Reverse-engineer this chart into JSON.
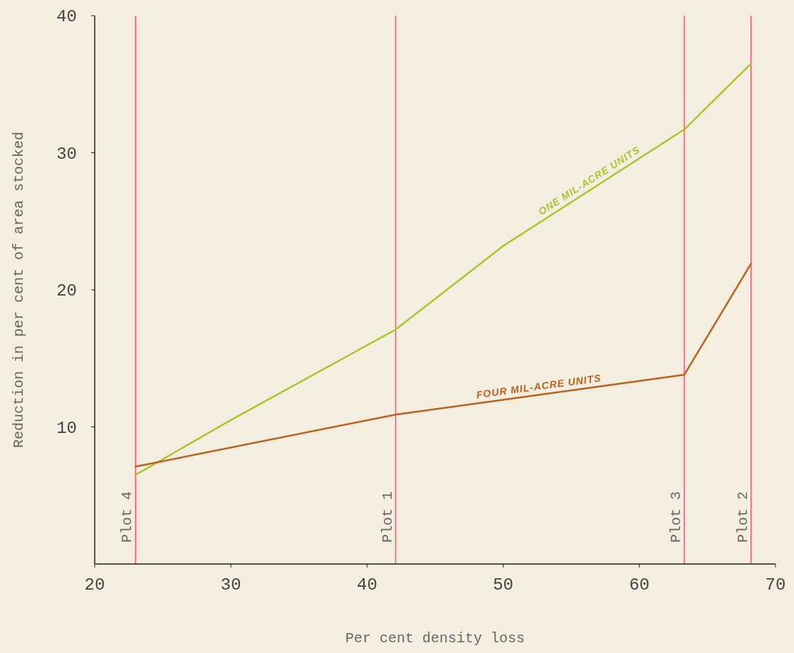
{
  "chart_data": {
    "type": "line",
    "xlabel": "Per cent density loss",
    "ylabel": "Reduction in per cent of area stocked",
    "xlim": [
      20,
      70
    ],
    "xticks": [
      20,
      30,
      40,
      50,
      60,
      70
    ],
    "ylim": [
      0,
      40
    ],
    "yticks": [
      10,
      20,
      30,
      40
    ],
    "grid": false,
    "legend": false,
    "marker": "none",
    "line_style": "solid",
    "series": [
      {
        "name": "ONE MIL-ACRE UNITS",
        "color": "#a8c62e",
        "x": [
          23.0,
          30,
          42.1,
          50,
          63.3,
          68.2
        ],
        "values": [
          6.5,
          10.5,
          17.1,
          23.2,
          31.7,
          36.5
        ]
      },
      {
        "name": "FOUR MIL-ACRE UNITS",
        "color": "#b8621e",
        "x": [
          23.0,
          42.1,
          63.3,
          68.2
        ],
        "values": [
          7.1,
          10.9,
          13.8,
          21.9
        ]
      }
    ],
    "ref_lines": [
      {
        "axis": "x",
        "value": 23.0,
        "label": "Plot 4",
        "color": "#ff4f6e"
      },
      {
        "axis": "x",
        "value": 42.1,
        "label": "Plot 1",
        "color": "#ff4f6e"
      },
      {
        "axis": "x",
        "value": 63.3,
        "label": "Plot 3",
        "color": "#ff4f6e"
      },
      {
        "axis": "x",
        "value": 68.2,
        "label": "Plot 2",
        "color": "#ff4f6e"
      }
    ]
  }
}
